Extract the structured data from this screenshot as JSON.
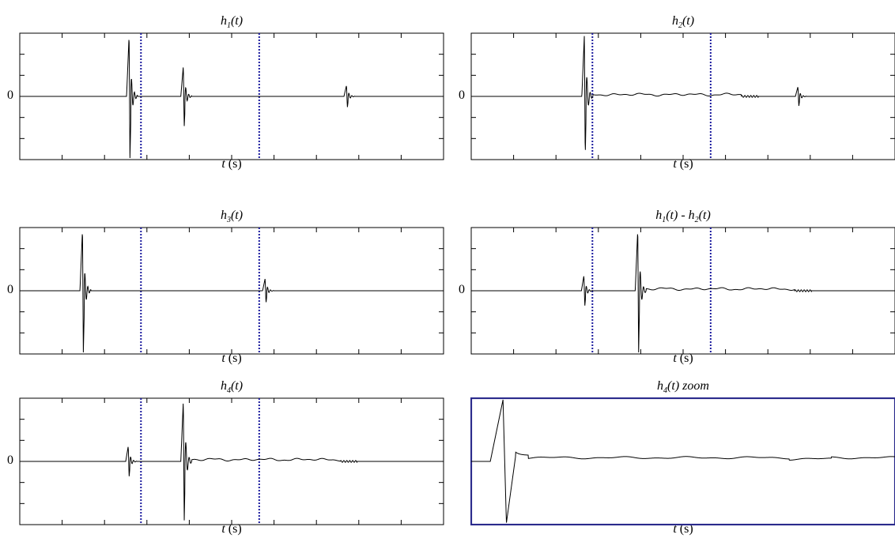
{
  "figure": {
    "zero_tick": "0",
    "xlabel_var": "t",
    "xlabel_unit": " (s)"
  },
  "colors": {
    "trace": "#000000",
    "marker": "#1a1a9e",
    "zoom_frame": "#2a2a8c",
    "axes": "#000000"
  },
  "chart_data": [
    {
      "id": "h1",
      "type": "line",
      "title": {
        "base": "h",
        "sub": "1",
        "rest": "(t)"
      },
      "xlabel": "t (s)",
      "ylabel": "",
      "grid": false,
      "markers": [
        0.286,
        0.565
      ],
      "events": [
        {
          "x": 0.258,
          "amp": 1.0,
          "style": "main"
        },
        {
          "x": 0.386,
          "amp": 0.5,
          "style": "echo"
        },
        {
          "x": 0.771,
          "amp": 0.18,
          "style": "echo"
        }
      ]
    },
    {
      "id": "h2",
      "type": "line",
      "title": {
        "base": "h",
        "sub": "2",
        "rest": "(t)"
      },
      "xlabel": "t (s)",
      "ylabel": "",
      "grid": false,
      "markers": [
        0.286,
        0.565
      ],
      "events": [
        {
          "x": 0.267,
          "amp": 1.0,
          "style": "main_tail"
        },
        {
          "x": 0.771,
          "amp": 0.16,
          "style": "echo"
        }
      ]
    },
    {
      "id": "h3",
      "type": "line",
      "title": {
        "base": "h",
        "sub": "3",
        "rest": "(t)"
      },
      "xlabel": "t (s)",
      "ylabel": "",
      "grid": false,
      "markers": [
        0.286,
        0.565
      ],
      "events": [
        {
          "x": 0.148,
          "amp": 1.0,
          "style": "main"
        },
        {
          "x": 0.579,
          "amp": 0.2,
          "style": "echo"
        }
      ]
    },
    {
      "id": "h1mh2",
      "type": "line",
      "title": {
        "base": "h",
        "sub": "1",
        "rest": "(t) - h",
        "sub2": "2",
        "rest2": "(t)"
      },
      "xlabel": "t (s)",
      "ylabel": "",
      "grid": false,
      "markers": [
        0.286,
        0.565
      ],
      "events": [
        {
          "x": 0.266,
          "amp": 0.25,
          "style": "echo"
        },
        {
          "x": 0.393,
          "amp": 1.0,
          "style": "main_tail"
        }
      ]
    },
    {
      "id": "h4",
      "type": "line",
      "title": {
        "base": "h",
        "sub": "4",
        "rest": "(t)"
      },
      "xlabel": "t (s)",
      "ylabel": "",
      "grid": false,
      "markers": [
        0.286,
        0.565
      ],
      "events": [
        {
          "x": 0.256,
          "amp": 0.25,
          "style": "echo"
        },
        {
          "x": 0.386,
          "amp": 1.0,
          "style": "main_tail"
        }
      ]
    },
    {
      "id": "h4zoom",
      "type": "line",
      "title": {
        "base": "h",
        "sub": "4",
        "rest": "(t) zoom"
      },
      "xlabel": "t (s)",
      "ylabel": "",
      "grid": false,
      "markers": [],
      "zoom": true,
      "events": [
        {
          "x": 0.075,
          "amp": 1.0,
          "style": "zoom_main"
        }
      ]
    }
  ]
}
